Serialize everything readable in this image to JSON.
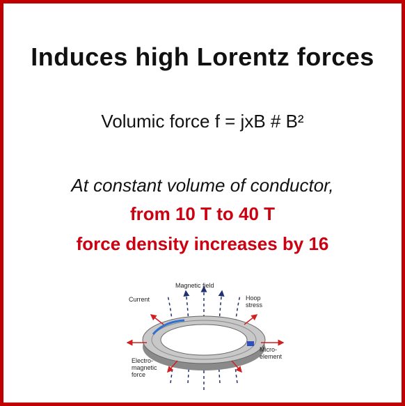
{
  "title": "Induces high Lorentz forces",
  "subtitle": "Volumic force f = jxB # B²",
  "statement": "At constant volume of conductor,",
  "highlights": [
    "from 10 T to 40 T",
    "force density increases by 16"
  ],
  "figure": {
    "labels": {
      "field": "Magnetic field",
      "current": "Current",
      "hoop": "Hoop\nstress",
      "micro": "Micro-\nelement",
      "force": "Electro-\nmagnetic\nforce"
    }
  }
}
